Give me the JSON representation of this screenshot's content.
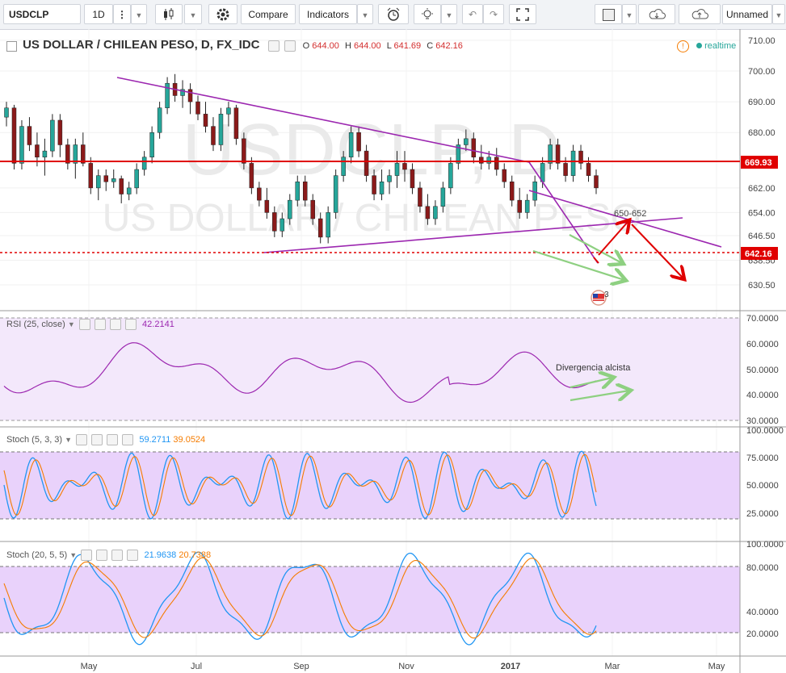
{
  "toolbar": {
    "symbol": "USDCLP",
    "interval": "1D",
    "compare_label": "Compare",
    "indicators_label": "Indicators",
    "layout_name": "Unnamed"
  },
  "header": {
    "title": "US DOLLAR / CHILEAN PESO, D, FX_IDC",
    "o_label": "O",
    "o_value": "644.00",
    "h_label": "H",
    "h_value": "644.00",
    "l_label": "L",
    "l_value": "641.69",
    "c_label": "C",
    "c_value": "642.16",
    "realtime_label": "realtime",
    "watermark_symbol": "USDCLP, D",
    "watermark_name": "US DOLLAR / CHILEAN PESO"
  },
  "colors": {
    "up": "#26a69a",
    "down": "#8b1a1a",
    "trend": "#9c27b0",
    "level": "#e00000",
    "arrow_green": "#8ed081",
    "blue": "#2196f3",
    "orange": "#f57c00"
  },
  "chart_data": [
    {
      "type": "candlestick",
      "title": "US DOLLAR / CHILEAN PESO, D, FX_IDC",
      "x_ticks": [
        "May",
        "Jul",
        "Sep",
        "Nov",
        "2017",
        "Mar",
        "May"
      ],
      "y_ticks": [
        710.0,
        700.0,
        690.0,
        680.0,
        669.93,
        662.0,
        654.0,
        646.5,
        642.16,
        638.5,
        630.5
      ],
      "ylim": [
        625,
        711
      ],
      "candles": [
        [
          685,
          690,
          682,
          688
        ],
        [
          688,
          689,
          668,
          670
        ],
        [
          670,
          684,
          668,
          682
        ],
        [
          682,
          685,
          674,
          676
        ],
        [
          676,
          680,
          669,
          672
        ],
        [
          672,
          678,
          666,
          674
        ],
        [
          674,
          686,
          672,
          684
        ],
        [
          684,
          686,
          672,
          676
        ],
        [
          676,
          678,
          668,
          670
        ],
        [
          670,
          678,
          665,
          676
        ],
        [
          676,
          680,
          669,
          670
        ],
        [
          670,
          672,
          660,
          662
        ],
        [
          662,
          668,
          658,
          666
        ],
        [
          666,
          668,
          661,
          664
        ],
        [
          664,
          668,
          662,
          665
        ],
        [
          665,
          666,
          657,
          660
        ],
        [
          660,
          664,
          658,
          662
        ],
        [
          662,
          670,
          660,
          668
        ],
        [
          668,
          674,
          666,
          672
        ],
        [
          672,
          682,
          670,
          680
        ],
        [
          680,
          690,
          678,
          688
        ],
        [
          688,
          698,
          686,
          696
        ],
        [
          696,
          699,
          690,
          692
        ],
        [
          692,
          697,
          688,
          694
        ],
        [
          694,
          696,
          686,
          690
        ],
        [
          690,
          692,
          684,
          686
        ],
        [
          686,
          690,
          680,
          682
        ],
        [
          682,
          685,
          674,
          676
        ],
        [
          676,
          688,
          674,
          686
        ],
        [
          686,
          690,
          682,
          688
        ],
        [
          688,
          689,
          676,
          678
        ],
        [
          678,
          680,
          668,
          670
        ],
        [
          670,
          672,
          660,
          662
        ],
        [
          662,
          664,
          656,
          658
        ],
        [
          658,
          662,
          652,
          654
        ],
        [
          654,
          656,
          646,
          648
        ],
        [
          648,
          654,
          646,
          652
        ],
        [
          652,
          660,
          650,
          658
        ],
        [
          658,
          666,
          656,
          664
        ],
        [
          664,
          666,
          656,
          658
        ],
        [
          658,
          660,
          650,
          652
        ],
        [
          652,
          654,
          644,
          646
        ],
        [
          646,
          656,
          644,
          654
        ],
        [
          654,
          668,
          652,
          666
        ],
        [
          666,
          674,
          664,
          672
        ],
        [
          672,
          682,
          670,
          680
        ],
        [
          680,
          682,
          672,
          674
        ],
        [
          674,
          676,
          664,
          666
        ],
        [
          666,
          668,
          658,
          660
        ],
        [
          660,
          668,
          658,
          664
        ],
        [
          664,
          668,
          660,
          666
        ],
        [
          666,
          674,
          662,
          670
        ],
        [
          670,
          674,
          664,
          668
        ],
        [
          668,
          670,
          660,
          662
        ],
        [
          662,
          664,
          654,
          656
        ],
        [
          656,
          660,
          650,
          652
        ],
        [
          652,
          658,
          650,
          656
        ],
        [
          656,
          664,
          654,
          662
        ],
        [
          662,
          672,
          660,
          670
        ],
        [
          670,
          678,
          668,
          676
        ],
        [
          676,
          681,
          674,
          678
        ],
        [
          678,
          680,
          670,
          672
        ],
        [
          672,
          676,
          668,
          670
        ],
        [
          670,
          674,
          668,
          672
        ],
        [
          672,
          675,
          666,
          668
        ],
        [
          668,
          670,
          662,
          664
        ],
        [
          664,
          666,
          656,
          658
        ],
        [
          658,
          662,
          652,
          654
        ],
        [
          654,
          660,
          652,
          658
        ],
        [
          658,
          666,
          656,
          664
        ],
        [
          664,
          672,
          662,
          670
        ],
        [
          670,
          678,
          668,
          676
        ],
        [
          676,
          678,
          668,
          670
        ],
        [
          670,
          672,
          664,
          666
        ],
        [
          666,
          676,
          664,
          674
        ],
        [
          674,
          676,
          668,
          670
        ],
        [
          670,
          672,
          664,
          666
        ],
        [
          666,
          668,
          660,
          662
        ]
      ]
    },
    {
      "type": "line",
      "title": "RSI (25, close)",
      "values_label": "42.2141",
      "y_ticks": [
        "70.0000",
        "60.0000",
        "50.0000",
        "40.0000",
        "30.0000"
      ],
      "ylim": [
        30,
        70
      ],
      "annotation": "Divergencia alcista"
    },
    {
      "type": "line",
      "title": "Stoch (5, 3, 3)",
      "k_value": "59.2711",
      "d_value": "39.0524",
      "y_ticks": [
        "100.0000",
        "75.0000",
        "50.0000",
        "25.0000"
      ],
      "ylim": [
        0,
        100
      ]
    },
    {
      "type": "line",
      "title": "Stoch (20, 5, 5)",
      "k_value": "21.9638",
      "d_value": "20.7388",
      "y_ticks": [
        "100.0000",
        "80.0000",
        "40.0000",
        "20.0000"
      ],
      "ylim": [
        0,
        100
      ]
    }
  ],
  "annotations": {
    "target": "650-652",
    "flag_number": "3"
  }
}
